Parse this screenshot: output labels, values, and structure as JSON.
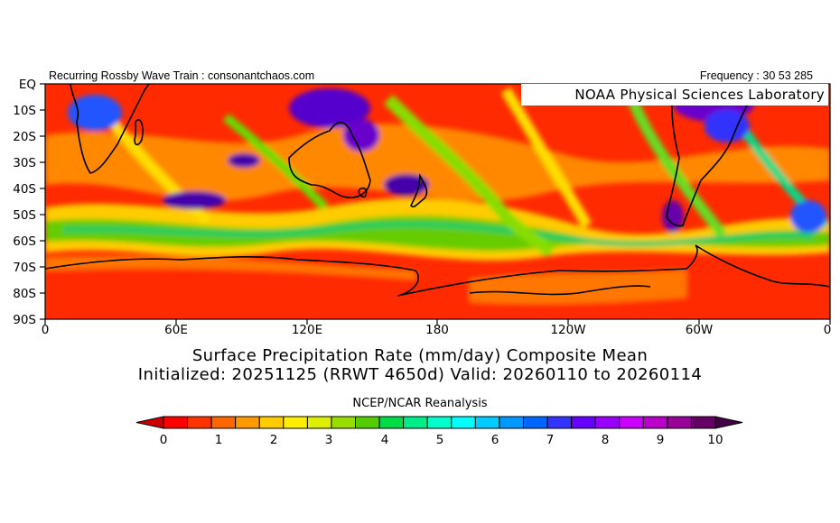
{
  "header": {
    "left_text": "Recurring Rossby Wave Train : consonantchaos.com",
    "right_text": "Frequency : 30 53 285",
    "lab_label": "NOAA Physical Sciences Laboratory"
  },
  "map": {
    "y_axis_labels": [
      "EQ",
      "10S",
      "20S",
      "30S",
      "40S",
      "50S",
      "60S",
      "70S",
      "80S",
      "90S"
    ],
    "x_axis_labels": [
      "0",
      "60E",
      "120E",
      "180",
      "120W",
      "60W",
      "0"
    ]
  },
  "title": {
    "line1": "Surface Precipitation Rate (mm/day) Composite Mean",
    "line2": "Initialized: 20251125 (RRWT 4650d) Valid: 20260110 to 20260114"
  },
  "dataset": "NCEP/NCAR Reanalysis",
  "colorbar": {
    "tick_labels": [
      "0",
      "1",
      "2",
      "3",
      "4",
      "5",
      "6",
      "7",
      "8",
      "9",
      "10"
    ],
    "colors": [
      "#ff0000",
      "#ff3300",
      "#ff6600",
      "#ff9900",
      "#ffcc00",
      "#ffee00",
      "#ddee00",
      "#99dd00",
      "#55cc00",
      "#00dd44",
      "#00ee88",
      "#00ffcc",
      "#00ffff",
      "#00ccff",
      "#0099ff",
      "#0066ff",
      "#3333ff",
      "#6600ff",
      "#9900ff",
      "#cc00ff",
      "#bb00cc",
      "#990099",
      "#660066"
    ],
    "end_colors": {
      "low": "#cc0000",
      "high": "#440044"
    }
  }
}
